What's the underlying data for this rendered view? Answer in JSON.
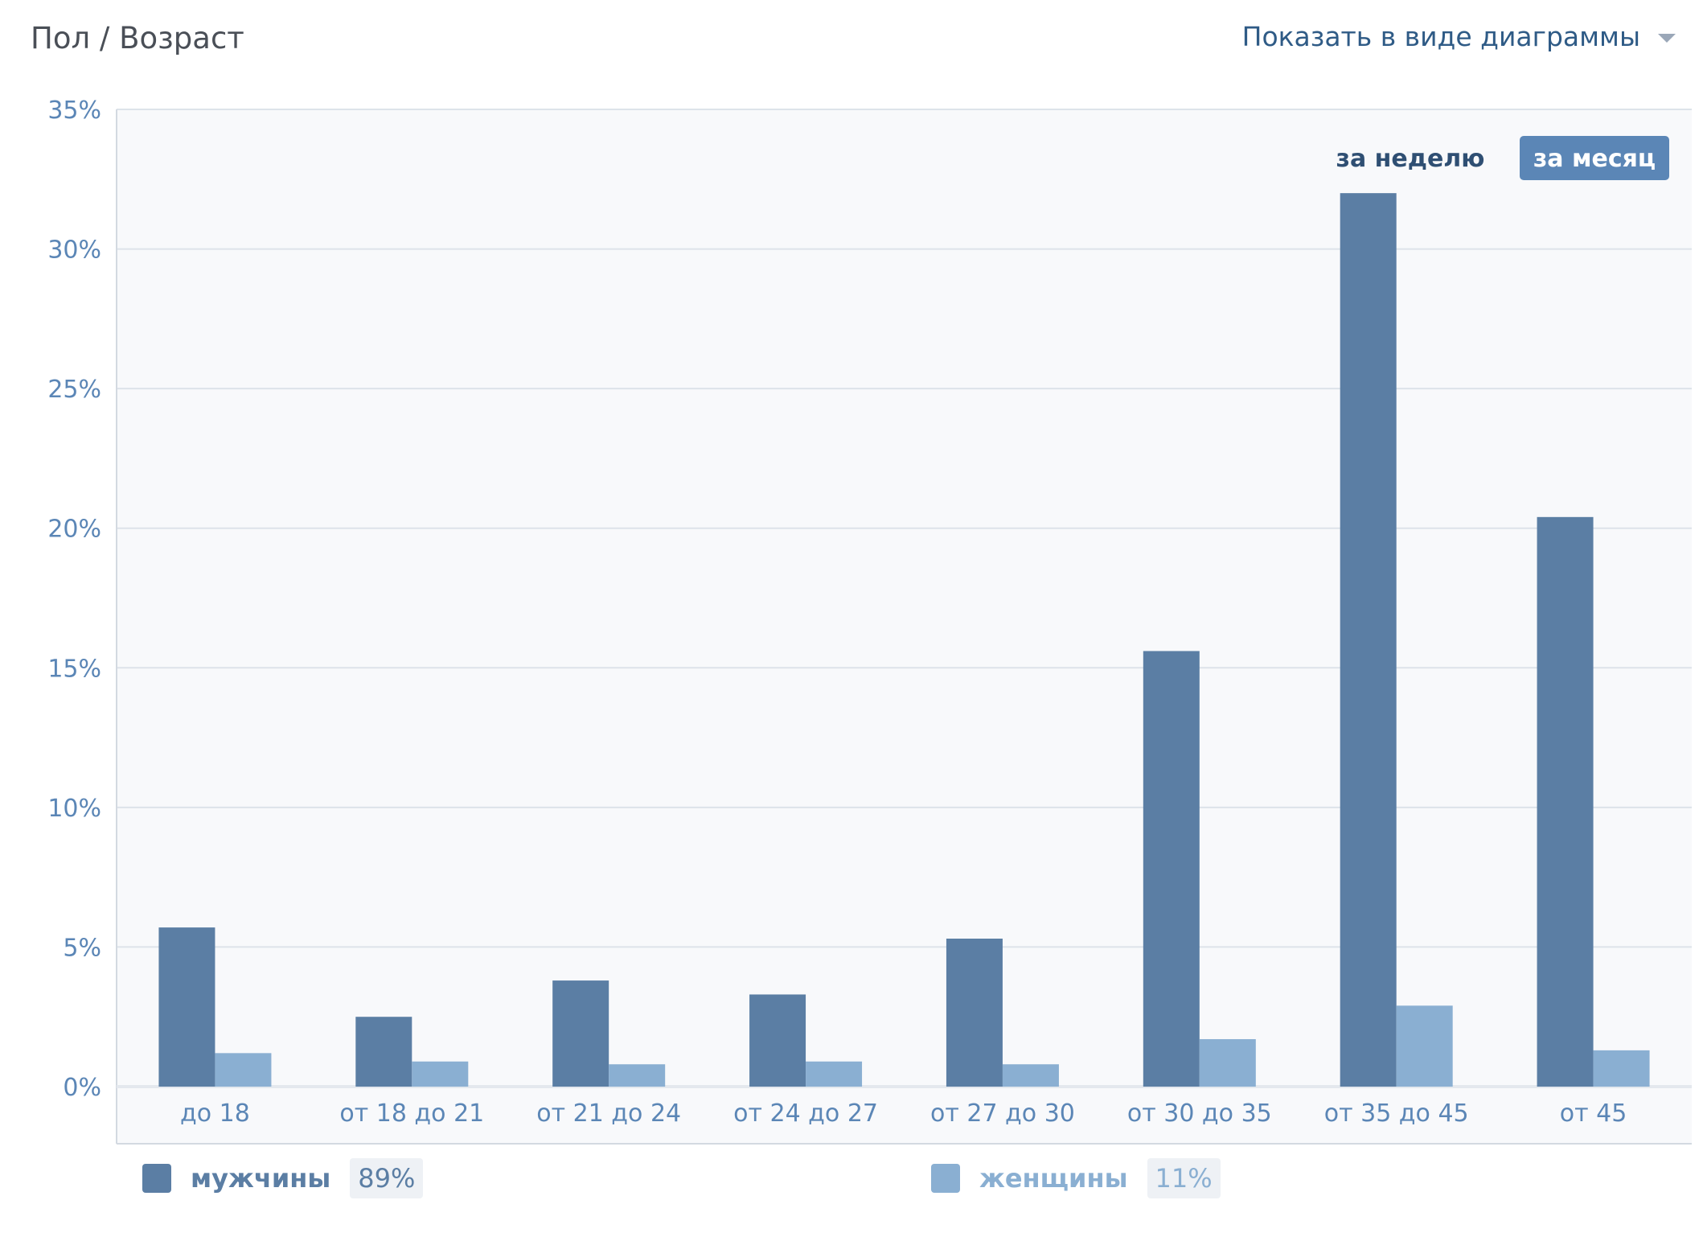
{
  "header": {
    "title": "Пол / Возраст",
    "view_toggle_label": "Показать в виде диаграммы"
  },
  "period_tabs": [
    {
      "label": "за неделю",
      "active": false
    },
    {
      "label": "за месяц",
      "active": true
    }
  ],
  "legend": [
    {
      "name": "мужчины",
      "percent": "89%",
      "color": "#5b7ea4"
    },
    {
      "name": "женщины",
      "percent": "11%",
      "color": "#8aafd2"
    }
  ],
  "chart_data": {
    "type": "bar",
    "categories": [
      "до 18",
      "от 18 до 21",
      "от 21 до 24",
      "от 24 до 27",
      "от 27 до 30",
      "от 30 до 35",
      "от 35 до 45",
      "от 45"
    ],
    "series": [
      {
        "name": "мужчины",
        "color": "#5b7ea4",
        "values": [
          5.7,
          2.5,
          3.8,
          3.3,
          5.3,
          15.6,
          32.0,
          20.4
        ]
      },
      {
        "name": "женщины",
        "color": "#8aafd2",
        "values": [
          1.2,
          0.9,
          0.8,
          0.9,
          0.8,
          1.7,
          2.9,
          1.3
        ]
      }
    ],
    "yticks": [
      "0%",
      "5%",
      "10%",
      "15%",
      "20%",
      "25%",
      "30%",
      "35%"
    ],
    "ylim": [
      0,
      35
    ],
    "grid": true,
    "legend_position": "bottom"
  }
}
